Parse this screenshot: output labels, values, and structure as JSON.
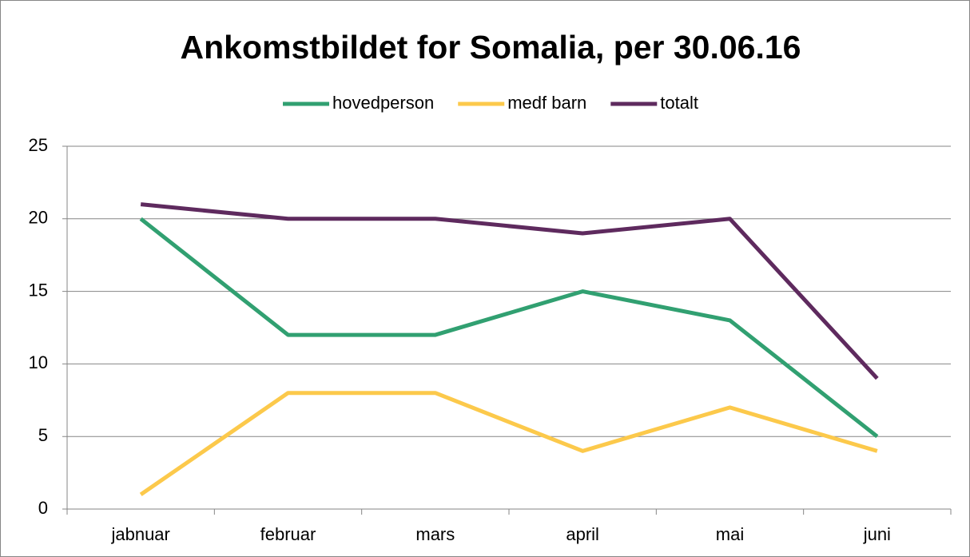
{
  "chart_data": {
    "type": "line",
    "title": "Ankomstbildet for Somalia, per 30.06.16",
    "categories": [
      "jabnuar",
      "februar",
      "mars",
      "april",
      "mai",
      "juni"
    ],
    "series": [
      {
        "name": "hovedperson",
        "color": "#31a071",
        "values": [
          20,
          12,
          12,
          15,
          13,
          5
        ]
      },
      {
        "name": "medf barn",
        "color": "#fcc94b",
        "values": [
          1,
          8,
          8,
          4,
          7,
          4
        ]
      },
      {
        "name": "totalt",
        "color": "#5e2a5e",
        "values": [
          21,
          20,
          20,
          19,
          20,
          9
        ]
      }
    ],
    "ylim": [
      0,
      25
    ],
    "yticks": [
      0,
      5,
      10,
      15,
      20,
      25
    ],
    "grid": true,
    "legend": "top"
  }
}
